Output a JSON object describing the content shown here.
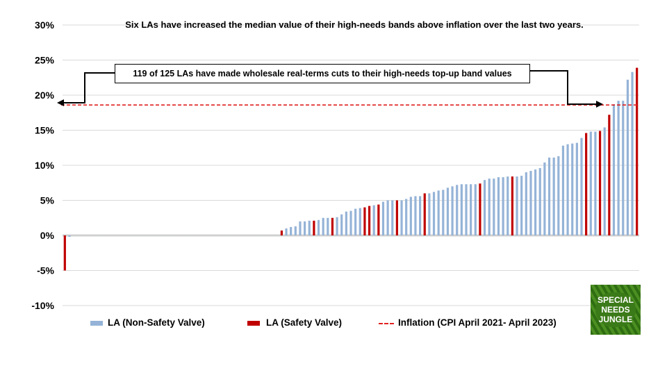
{
  "chart_data": {
    "type": "bar",
    "title": "Six LAs have increased the median value of their high-needs bands above inflation over the last two years.",
    "ylim": [
      -10,
      30
    ],
    "yticks": [
      -10,
      -5,
      0,
      5,
      10,
      15,
      20,
      25,
      30
    ],
    "ytick_labels": [
      "-10%",
      "-5%",
      "0%",
      "5%",
      "10%",
      "15%",
      "20%",
      "25%",
      "30%"
    ],
    "grid": true,
    "legend_position": "bottom",
    "values": [
      -5.0,
      -0.2,
      0,
      0,
      0,
      0,
      0,
      0,
      0,
      0,
      0,
      0,
      0,
      0,
      0,
      0,
      0,
      0,
      0,
      0,
      0,
      0,
      0,
      0,
      0,
      0,
      0,
      0,
      0,
      0,
      0,
      0,
      0,
      0,
      0,
      0,
      0,
      0,
      0,
      0,
      0,
      0,
      0,
      0,
      0,
      0,
      0,
      0.7,
      1.0,
      1.2,
      1.3,
      2.0,
      2.0,
      2.1,
      2.1,
      2.2,
      2.5,
      2.5,
      2.5,
      2.6,
      3.0,
      3.4,
      3.5,
      3.8,
      3.9,
      4.0,
      4.2,
      4.3,
      4.4,
      4.8,
      5.0,
      5.0,
      5.0,
      5.0,
      5.2,
      5.5,
      5.6,
      5.6,
      6.0,
      6.0,
      6.2,
      6.4,
      6.5,
      6.8,
      7.0,
      7.2,
      7.3,
      7.3,
      7.3,
      7.3,
      7.4,
      7.9,
      8.1,
      8.1,
      8.3,
      8.3,
      8.4,
      8.4,
      8.4,
      8.5,
      9.0,
      9.2,
      9.4,
      9.6,
      10.4,
      11.1,
      11.1,
      11.3,
      12.8,
      13.0,
      13.1,
      13.2,
      13.9,
      14.6,
      14.8,
      14.8,
      14.9,
      15.4,
      17.2,
      18.7,
      19.2,
      19.2,
      22.2,
      23.3,
      23.9
    ],
    "safety_valve_indices": [
      0,
      47,
      54,
      58,
      65,
      66,
      68,
      72,
      78,
      90,
      97,
      113,
      116,
      118,
      124
    ],
    "series": [
      {
        "name": "LA (Non-Safety Valve)",
        "color": "#95b3d7"
      },
      {
        "name": "LA (Safety Valve)",
        "color": "#c00000"
      }
    ],
    "reference_line": {
      "name": "Inflation (CPI April 2021- April 2023)",
      "value": 18.6,
      "color": "#e02020",
      "style": "dashed"
    },
    "annotation": "119 of 125 LAs have made wholesale real-terms cuts to their high-needs top-up band values"
  },
  "logo": {
    "text": "SPECIAL NEEDS JUNGLE"
  }
}
